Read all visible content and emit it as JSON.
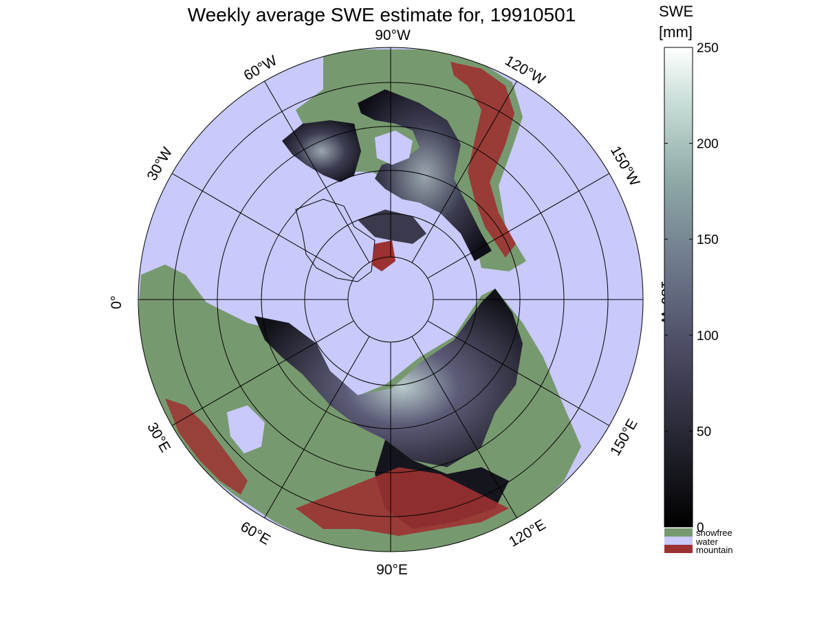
{
  "title": "Weekly average SWE estimate for, 19910501",
  "lon_labels": {
    "lon_90w": "90°W",
    "lon_120w": "120°W",
    "lon_150w": "150°W",
    "lon_180w": "180°W",
    "lon_150e": "150°E",
    "lon_120e": "120°E",
    "lon_90e": "90°E",
    "lon_60e": "60°E",
    "lon_30e": "30°E",
    "lon_0": "0°",
    "lon_30w": "30°W",
    "lon_60w": "60°W"
  },
  "colorbar": {
    "label_line1": "SWE",
    "label_line2": "[mm]",
    "ticks": [
      "0",
      "50",
      "100",
      "150",
      "200",
      "250"
    ],
    "tick_values": [
      0,
      50,
      100,
      150,
      200,
      250
    ],
    "range": [
      0,
      250
    ]
  },
  "legend": [
    {
      "label": "snowfree",
      "color": "#77996f"
    },
    {
      "label": "water",
      "color": "#c9c9fb"
    },
    {
      "label": "mountain",
      "color": "#9c3131"
    }
  ],
  "colors": {
    "water": "#c9c9fb",
    "land": "#77996f",
    "mountain": "#9c3131",
    "snow_low": "#0a0a10",
    "snow_high": "#f6fbfa"
  }
}
